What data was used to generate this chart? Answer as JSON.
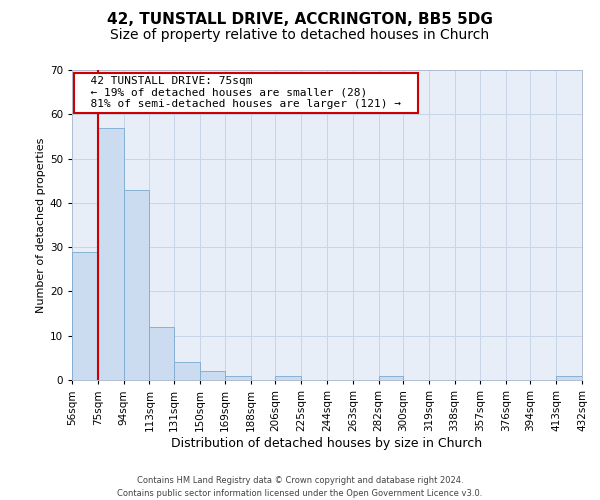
{
  "title": "42, TUNSTALL DRIVE, ACCRINGTON, BB5 5DG",
  "subtitle": "Size of property relative to detached houses in Church",
  "xlabel": "Distribution of detached houses by size in Church",
  "ylabel": "Number of detached properties",
  "footer_line1": "Contains HM Land Registry data © Crown copyright and database right 2024.",
  "footer_line2": "Contains public sector information licensed under the Open Government Licence v3.0.",
  "annotation_line1": "42 TUNSTALL DRIVE: 75sqm",
  "annotation_line2": "← 19% of detached houses are smaller (28)",
  "annotation_line3": "81% of semi-detached houses are larger (121) →",
  "bar_color": "#ccdcf0",
  "bar_edge_color": "#7aaad0",
  "redline_color": "#cc0000",
  "redline_x": 75,
  "annotation_box_facecolor": "#ffffff",
  "annotation_box_edgecolor": "#cc0000",
  "bin_edges": [
    56,
    75,
    94,
    113,
    131,
    150,
    169,
    188,
    206,
    225,
    244,
    263,
    282,
    300,
    319,
    338,
    357,
    376,
    394,
    413,
    432
  ],
  "bar_heights": [
    29,
    57,
    43,
    12,
    4,
    2,
    1,
    0,
    1,
    0,
    0,
    0,
    1,
    0,
    0,
    0,
    0,
    0,
    0,
    1
  ],
  "ylim": [
    0,
    70
  ],
  "yticks": [
    0,
    10,
    20,
    30,
    40,
    50,
    60,
    70
  ],
  "grid_color": "#c8d4e8",
  "plot_bg_color": "#e8eef8",
  "fig_bg_color": "#ffffff",
  "title_fontsize": 11,
  "subtitle_fontsize": 10,
  "ylabel_fontsize": 8,
  "xlabel_fontsize": 9,
  "tick_fontsize": 7.5,
  "footer_fontsize": 6,
  "annotation_fontsize": 8
}
